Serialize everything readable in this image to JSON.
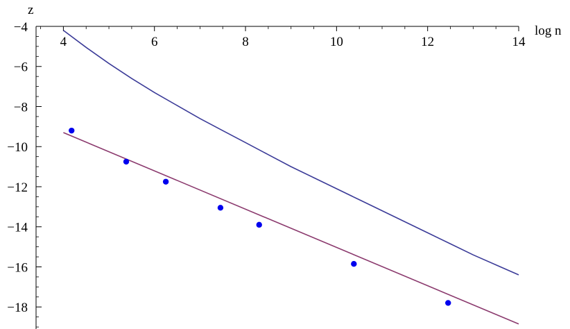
{
  "chart_data": {
    "type": "scatter",
    "xlabel": "log n",
    "ylabel": "z",
    "xlim": [
      3.4,
      14
    ],
    "ylim": [
      -19.1,
      -4
    ],
    "x_ticks": [
      4,
      6,
      8,
      10,
      12,
      14
    ],
    "y_ticks": [
      -4,
      -6,
      -8,
      -10,
      -12,
      -14,
      -16,
      -18
    ],
    "x_tick_labels": [
      "4",
      "6",
      "8",
      "10",
      "12",
      "14"
    ],
    "y_tick_labels": [
      "−4",
      "−6",
      "−8",
      "−10",
      "−12",
      "−14",
      "−16",
      "−18"
    ],
    "grid": false,
    "series": [
      {
        "kind": "line",
        "color": "#3b3b98",
        "x": [
          4.0,
          4.5,
          5.0,
          5.5,
          6.0,
          6.5,
          7.0,
          7.5,
          8.0,
          8.5,
          9.0,
          9.5,
          10.0,
          10.5,
          11.0,
          11.5,
          12.0,
          12.5,
          13.0,
          13.5,
          14.0
        ],
        "y": [
          -4.2,
          -5.05,
          -5.85,
          -6.6,
          -7.3,
          -7.95,
          -8.6,
          -9.2,
          -9.8,
          -10.4,
          -11.0,
          -11.55,
          -12.1,
          -12.65,
          -13.2,
          -13.75,
          -14.3,
          -14.85,
          -15.4,
          -15.9,
          -16.4
        ]
      },
      {
        "kind": "line",
        "color": "#8b3a6e",
        "x": [
          4.0,
          14.0
        ],
        "y": [
          -9.3,
          -18.85
        ]
      },
      {
        "kind": "scatter",
        "color": "#0000ee",
        "x": [
          4.18,
          5.38,
          6.25,
          7.45,
          8.3,
          10.38,
          12.45
        ],
        "y": [
          -9.2,
          -10.75,
          -11.75,
          -13.05,
          -13.9,
          -15.85,
          -17.8
        ]
      }
    ]
  }
}
